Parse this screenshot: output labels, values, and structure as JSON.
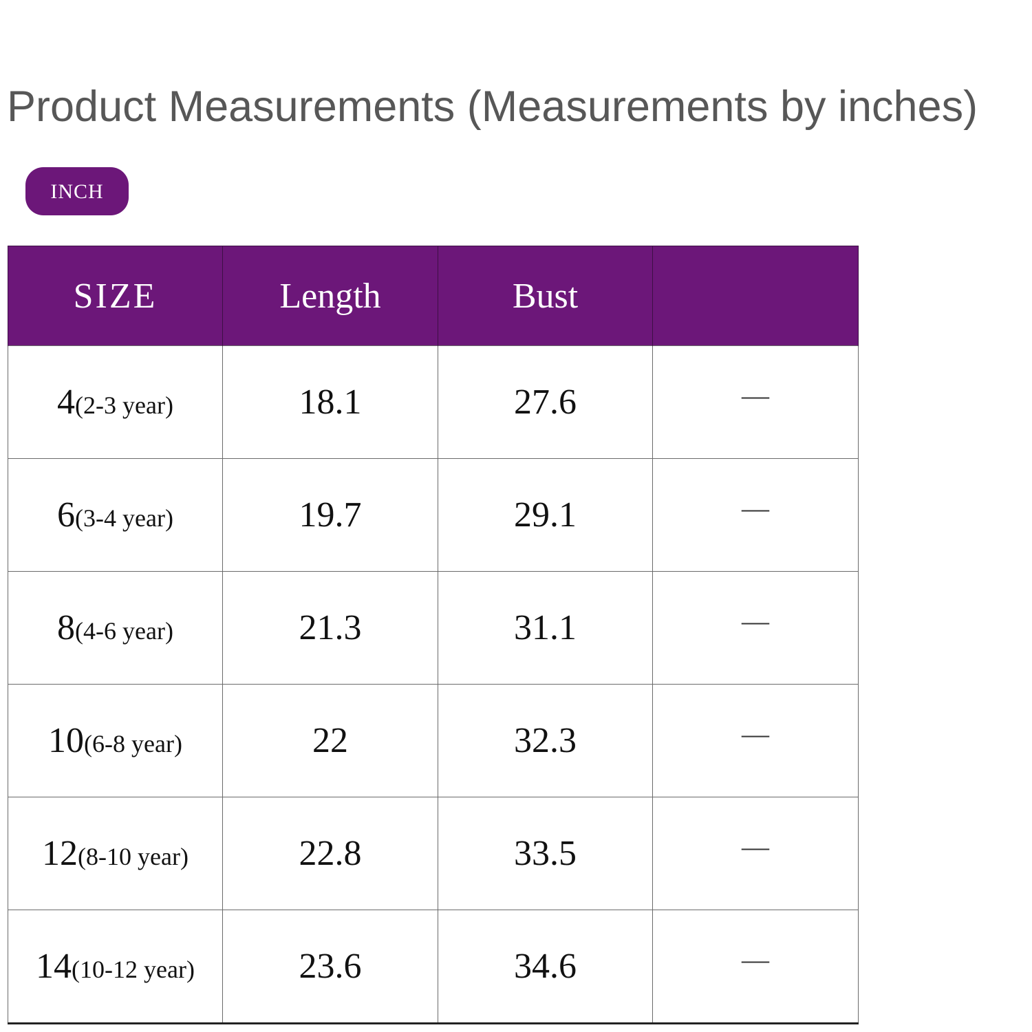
{
  "title": "Product Measurements (Measurements by inches)",
  "unit_badge": "INCH",
  "colors": {
    "header_bg": "#6c1779",
    "badge_bg": "#6c1779",
    "title_text": "#575757"
  },
  "table": {
    "headers": [
      "SIZE",
      "Length",
      "Bust",
      ""
    ],
    "rows": [
      {
        "size": "4",
        "age": "(2-3 year)",
        "length": "18.1",
        "bust": "27.6",
        "extra": "—"
      },
      {
        "size": "6",
        "age": "(3-4 year)",
        "length": "19.7",
        "bust": "29.1",
        "extra": "—"
      },
      {
        "size": "8",
        "age": "(4-6 year)",
        "length": "21.3",
        "bust": "31.1",
        "extra": "—"
      },
      {
        "size": "10",
        "age": "(6-8 year)",
        "length": "22",
        "bust": "32.3",
        "extra": "—"
      },
      {
        "size": "12",
        "age": "(8-10 year)",
        "length": "22.8",
        "bust": "33.5",
        "extra": "—"
      },
      {
        "size": "14",
        "age": "(10-12 year)",
        "length": "23.6",
        "bust": "34.6",
        "extra": "—"
      }
    ]
  }
}
